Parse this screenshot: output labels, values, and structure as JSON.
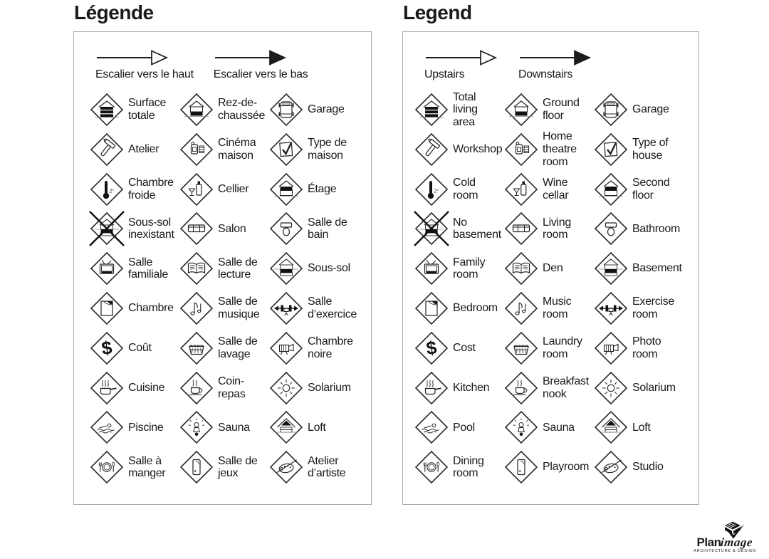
{
  "colors": {
    "ink": "#1a1a1a",
    "line": "#222222",
    "panel_border": "#a9a9a9",
    "glyph_fill": "#111111",
    "ground_line": "#8a8a8a"
  },
  "panels": [
    {
      "id": "legend-fr",
      "title": "Légende",
      "stairs": [
        {
          "icon": "stairs-up-arrow",
          "label": "Escalier vers le haut"
        },
        {
          "icon": "stairs-down-arrow",
          "label": "Escalier vers le bas"
        }
      ],
      "items": [
        {
          "icon": "total-living-area",
          "label": "Surface\ntotale"
        },
        {
          "icon": "ground-floor",
          "label": "Rez-de-\nchaussée"
        },
        {
          "icon": "garage",
          "label": "Garage"
        },
        {
          "icon": "workshop",
          "label": "Atelier"
        },
        {
          "icon": "home-theatre",
          "label": "Cinéma\nmaison"
        },
        {
          "icon": "type-of-house",
          "label": "Type de\nmaison"
        },
        {
          "icon": "cold-room",
          "label": "Chambre\nfroide"
        },
        {
          "icon": "wine-cellar",
          "label": "Cellier"
        },
        {
          "icon": "second-floor",
          "label": "Étage"
        },
        {
          "icon": "no-basement",
          "label": "Sous-sol\ninexistant"
        },
        {
          "icon": "living-room",
          "label": "Salon"
        },
        {
          "icon": "bathroom",
          "label": "Salle de\nbain"
        },
        {
          "icon": "family-room",
          "label": "Salle\nfamiliale"
        },
        {
          "icon": "den",
          "label": "Salle de\nlecture"
        },
        {
          "icon": "basement",
          "label": "Sous-sol"
        },
        {
          "icon": "bedroom",
          "label": "Chambre"
        },
        {
          "icon": "music-room",
          "label": "Salle de\nmusique"
        },
        {
          "icon": "exercise-room",
          "label": "Salle\nd’exercice"
        },
        {
          "icon": "cost",
          "label": "Coût"
        },
        {
          "icon": "laundry-room",
          "label": "Salle de\nlavage"
        },
        {
          "icon": "photo-room",
          "label": "Chambre\nnoire"
        },
        {
          "icon": "kitchen",
          "label": "Cuisine"
        },
        {
          "icon": "breakfast-nook",
          "label": "Coin-\nrepas"
        },
        {
          "icon": "solarium",
          "label": "Solarium"
        },
        {
          "icon": "pool",
          "label": "Piscine"
        },
        {
          "icon": "sauna",
          "label": "Sauna"
        },
        {
          "icon": "loft",
          "label": "Loft"
        },
        {
          "icon": "dining-room",
          "label": "Salle à\nmanger"
        },
        {
          "icon": "playroom",
          "label": "Salle de\njeux"
        },
        {
          "icon": "studio",
          "label": "Atelier\nd’artiste"
        }
      ]
    },
    {
      "id": "legend-en",
      "title": "Legend",
      "stairs": [
        {
          "icon": "stairs-up-arrow",
          "label": "Upstairs"
        },
        {
          "icon": "stairs-down-arrow",
          "label": "Downstairs"
        }
      ],
      "items": [
        {
          "icon": "total-living-area",
          "label": "Total\nliving\narea"
        },
        {
          "icon": "ground-floor",
          "label": "Ground\nfloor"
        },
        {
          "icon": "garage",
          "label": "Garage"
        },
        {
          "icon": "workshop",
          "label": "Workshop"
        },
        {
          "icon": "home-theatre",
          "label": "Home\ntheatre\nroom"
        },
        {
          "icon": "type-of-house",
          "label": "Type of\nhouse"
        },
        {
          "icon": "cold-room",
          "label": "Cold\nroom"
        },
        {
          "icon": "wine-cellar",
          "label": "Wine\ncellar"
        },
        {
          "icon": "second-floor",
          "label": "Second\nfloor"
        },
        {
          "icon": "no-basement",
          "label": "No\nbasement"
        },
        {
          "icon": "living-room",
          "label": "Living\nroom"
        },
        {
          "icon": "bathroom",
          "label": "Bathroom"
        },
        {
          "icon": "family-room",
          "label": "Family\nroom"
        },
        {
          "icon": "den",
          "label": "Den"
        },
        {
          "icon": "basement",
          "label": "Basement"
        },
        {
          "icon": "bedroom",
          "label": "Bedroom"
        },
        {
          "icon": "music-room",
          "label": "Music\nroom"
        },
        {
          "icon": "exercise-room",
          "label": "Exercise\nroom"
        },
        {
          "icon": "cost",
          "label": "Cost"
        },
        {
          "icon": "laundry-room",
          "label": "Laundry\nroom"
        },
        {
          "icon": "photo-room",
          "label": "Photo\nroom"
        },
        {
          "icon": "kitchen",
          "label": "Kitchen"
        },
        {
          "icon": "breakfast-nook",
          "label": "Breakfast\nnook"
        },
        {
          "icon": "solarium",
          "label": "Solarium"
        },
        {
          "icon": "pool",
          "label": "Pool"
        },
        {
          "icon": "sauna",
          "label": "Sauna"
        },
        {
          "icon": "loft",
          "label": "Loft"
        },
        {
          "icon": "dining-room",
          "label": "Dining\nroom"
        },
        {
          "icon": "playroom",
          "label": "Playroom"
        },
        {
          "icon": "studio",
          "label": "Studio"
        }
      ]
    }
  ],
  "logo": {
    "brand_bold": "Plan",
    "brand_italic": "image",
    "tagline": "ARCHITECTURE & DESIGN"
  }
}
